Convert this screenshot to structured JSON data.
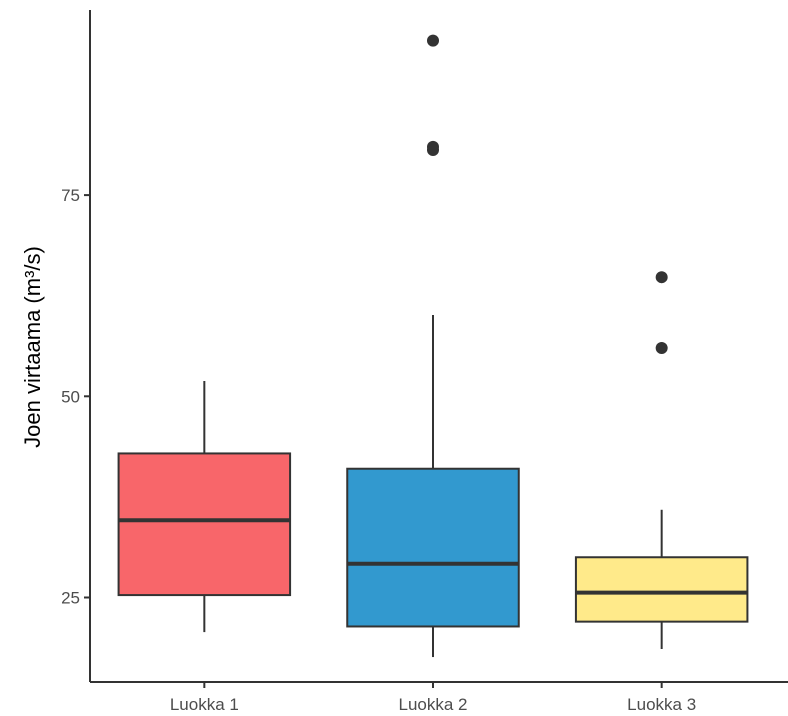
{
  "chart_data": {
    "type": "boxplot",
    "title": "",
    "xlabel": "",
    "ylabel": "Joen virtaama (m³/s)",
    "ylim": [
      14.5,
      98
    ],
    "y_ticks": [
      25,
      50,
      75
    ],
    "y_tick_labels": [
      "25",
      "50",
      "75"
    ],
    "grid": false,
    "legend": "none",
    "categories": [
      "Luokka 1",
      "Luokka 2",
      "Luokka 3"
    ],
    "boxes": [
      {
        "category": "Luokka 1",
        "color": "#F8666A",
        "whisker_low": 20.7,
        "q1": 25.3,
        "median": 34.6,
        "q3": 42.9,
        "whisker_high": 51.9,
        "outliers": []
      },
      {
        "category": "Luokka 2",
        "color": "#3299CF",
        "whisker_low": 17.6,
        "q1": 21.4,
        "median": 29.2,
        "q3": 41.0,
        "whisker_high": 60.1,
        "outliers": [
          94.2,
          81.0,
          80.6
        ]
      },
      {
        "category": "Luokka 3",
        "color": "#FFEA8A",
        "whisker_low": 18.6,
        "q1": 22.0,
        "median": 25.6,
        "q3": 30.0,
        "whisker_high": 35.9,
        "outliers": [
          64.8,
          56.0
        ]
      }
    ]
  }
}
